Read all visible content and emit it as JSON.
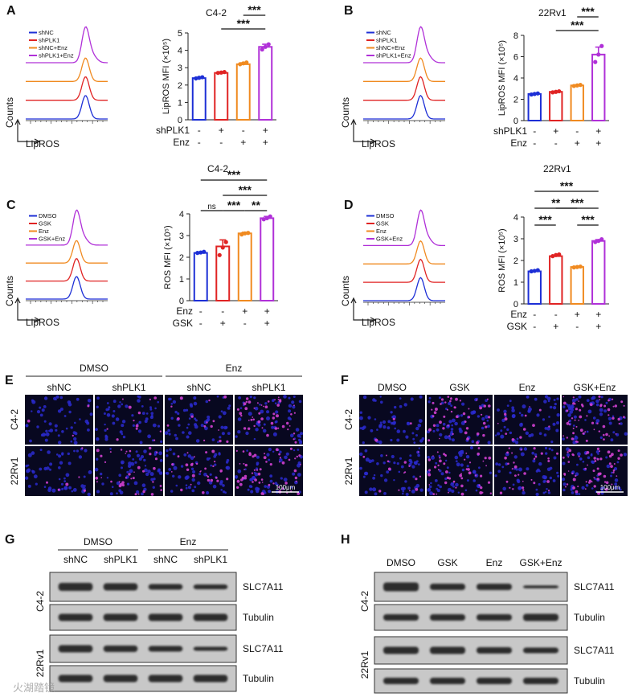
{
  "colors": {
    "blue": "#1d2fd6",
    "red": "#e02323",
    "orange": "#f08a20",
    "purple": "#b030d8",
    "nuclei": "#2a2ad0",
    "lipid": "#d040d0",
    "band": "#1a1a1a",
    "blot_bg": "#c8c8c8"
  },
  "panels": {
    "A": {
      "letter": "A",
      "cell_line": "C4-2",
      "histogram": {
        "legend": [
          "shNC",
          "shPLK1",
          "shNC+Enz",
          "shPLK1+Enz"
        ],
        "y_label": "Counts",
        "x_label": "LipROS"
      },
      "rows": [
        {
          "label": "shPLK1",
          "signs": [
            "-",
            "+",
            "-",
            "+"
          ]
        },
        {
          "label": "Enz",
          "signs": [
            "-",
            "-",
            "+",
            "+"
          ]
        }
      ]
    },
    "B": {
      "letter": "B",
      "cell_line": "22Rv1",
      "histogram": {
        "legend": [
          "shNC",
          "shPLK1",
          "shNC+Enz",
          "shPLK1+Enz"
        ],
        "y_label": "Counts",
        "x_label": "LipROS"
      },
      "rows": [
        {
          "label": "shPLK1",
          "signs": [
            "-",
            "+",
            "-",
            "+"
          ]
        },
        {
          "label": "Enz",
          "signs": [
            "-",
            "-",
            "+",
            "+"
          ]
        }
      ]
    },
    "C": {
      "letter": "C",
      "cell_line": "C4-2",
      "histogram": {
        "legend": [
          "DMSO",
          "GSK",
          "Enz",
          "GSK+Enz"
        ],
        "y_label": "Counts",
        "x_label": "LipROS"
      },
      "rows": [
        {
          "label": "Enz",
          "signs": [
            "-",
            "-",
            "+",
            "+"
          ]
        },
        {
          "label": "GSK",
          "signs": [
            "-",
            "+",
            "-",
            "+"
          ]
        }
      ]
    },
    "D": {
      "letter": "D",
      "cell_line": "22Rv1",
      "histogram": {
        "legend": [
          "DMSO",
          "GSK",
          "Enz",
          "GSK+Enz"
        ],
        "y_label": "Counts",
        "x_label": "LipROS"
      },
      "rows": [
        {
          "label": "Enz",
          "signs": [
            "-",
            "-",
            "+",
            "+"
          ]
        },
        {
          "label": "GSK",
          "signs": [
            "-",
            "+",
            "-",
            "+"
          ]
        }
      ]
    },
    "E": {
      "letter": "E",
      "groups": [
        "DMSO",
        "Enz"
      ],
      "columns": [
        "shNC",
        "shPLK1",
        "shNC",
        "shPLK1"
      ],
      "rows": [
        "C4-2",
        "22Rv1"
      ],
      "scale_bar": "100μm"
    },
    "F": {
      "letter": "F",
      "columns": [
        "DMSO",
        "GSK",
        "Enz",
        "GSK+Enz"
      ],
      "rows": [
        "C4-2",
        "22Rv1"
      ],
      "scale_bar": "100μm"
    },
    "G": {
      "letter": "G",
      "groups": [
        "DMSO",
        "Enz"
      ],
      "columns": [
        "shNC",
        "shPLK1",
        "shNC",
        "shPLK1"
      ],
      "rows": [
        "C4-2",
        "22Rv1"
      ],
      "proteins": [
        "SLC7A11",
        "Tubulin",
        "SLC7A11",
        "Tubulin"
      ],
      "watermark": "火湖踏镜"
    },
    "H": {
      "letter": "H",
      "columns": [
        "DMSO",
        "GSK",
        "Enz",
        "GSK+Enz"
      ],
      "rows": [
        "C4-2",
        "22Rv1"
      ],
      "proteins": [
        "SLC7A11",
        "Tubulin",
        "SLC7A11",
        "Tubulin"
      ]
    }
  },
  "chart_data": [
    {
      "panel": "A",
      "type": "bar",
      "title": "C4-2",
      "ylabel": "LipROS MFI (×10⁵)",
      "ylim": [
        0,
        5
      ],
      "yticks": [
        "0",
        "1",
        "2",
        "3",
        "4",
        "5"
      ],
      "values": [
        2.4,
        2.7,
        3.2,
        4.2
      ],
      "points": [
        [
          2.38,
          2.42,
          2.45
        ],
        [
          2.7,
          2.72,
          2.75
        ],
        [
          3.2,
          3.25,
          3.3
        ],
        [
          4.05,
          4.2,
          4.35
        ]
      ],
      "errors": [
        0.05,
        0.05,
        0.08,
        0.15
      ],
      "significance": [
        {
          "from": 1,
          "to": 3,
          "label": "***"
        },
        {
          "from": 2,
          "to": 3,
          "label": "***"
        }
      ]
    },
    {
      "panel": "B",
      "type": "bar",
      "title": "22Rv1",
      "ylabel": "LipROS MFI (×10⁵)",
      "ylim": [
        0,
        8
      ],
      "yticks": [
        "0",
        "2",
        "4",
        "6",
        "8"
      ],
      "values": [
        2.5,
        2.7,
        3.3,
        6.2
      ],
      "points": [
        [
          2.45,
          2.5,
          2.55
        ],
        [
          2.65,
          2.7,
          2.75
        ],
        [
          3.25,
          3.3,
          3.35
        ],
        [
          5.5,
          6.2,
          7.0
        ]
      ],
      "errors": [
        0.05,
        0.05,
        0.05,
        0.7
      ],
      "significance": [
        {
          "from": 1,
          "to": 3,
          "label": "***"
        },
        {
          "from": 2,
          "to": 3,
          "label": "***"
        }
      ]
    },
    {
      "panel": "C",
      "type": "bar",
      "title": "",
      "ylabel": "ROS MFI (×10⁵)",
      "ylim": [
        0,
        4
      ],
      "yticks": [
        "0",
        "1",
        "2",
        "3",
        "4"
      ],
      "values": [
        2.2,
        2.5,
        3.1,
        3.8
      ],
      "points": [
        [
          2.2,
          2.22,
          2.25
        ],
        [
          2.1,
          2.45,
          2.7
        ],
        [
          3.05,
          3.1,
          3.12
        ],
        [
          3.75,
          3.8,
          3.88
        ]
      ],
      "errors": [
        0.03,
        0.3,
        0.05,
        0.08
      ],
      "significance": [
        {
          "from": 0,
          "to": 1,
          "label": "ns",
          "row": 0
        },
        {
          "from": 1,
          "to": 2,
          "label": "***",
          "row": 0
        },
        {
          "from": 2,
          "to": 3,
          "label": "**",
          "row": 0
        },
        {
          "from": 1,
          "to": 3,
          "label": "***",
          "row": 1
        },
        {
          "from": 0,
          "to": 3,
          "label": "***",
          "row": 2
        }
      ]
    },
    {
      "panel": "D",
      "type": "bar",
      "title": "",
      "ylabel": "ROS MFI (×10⁵)",
      "ylim": [
        0,
        4
      ],
      "yticks": [
        "0",
        "1",
        "2",
        "3",
        "4"
      ],
      "values": [
        1.5,
        2.2,
        1.7,
        2.9
      ],
      "points": [
        [
          1.5,
          1.52,
          1.55
        ],
        [
          2.2,
          2.25,
          2.28
        ],
        [
          1.68,
          1.7,
          1.72
        ],
        [
          2.85,
          2.9,
          2.98
        ]
      ],
      "errors": [
        0.03,
        0.04,
        0.02,
        0.06
      ],
      "significance": [
        {
          "from": 0,
          "to": 1,
          "label": "***",
          "row": 0
        },
        {
          "from": 2,
          "to": 3,
          "label": "***",
          "row": 0
        },
        {
          "from": 0,
          "to": 2,
          "label": "**",
          "row": 1
        },
        {
          "from": 1,
          "to": 3,
          "label": "***",
          "row": 1
        },
        {
          "from": 0,
          "to": 3,
          "label": "***",
          "row": 2
        }
      ]
    }
  ]
}
